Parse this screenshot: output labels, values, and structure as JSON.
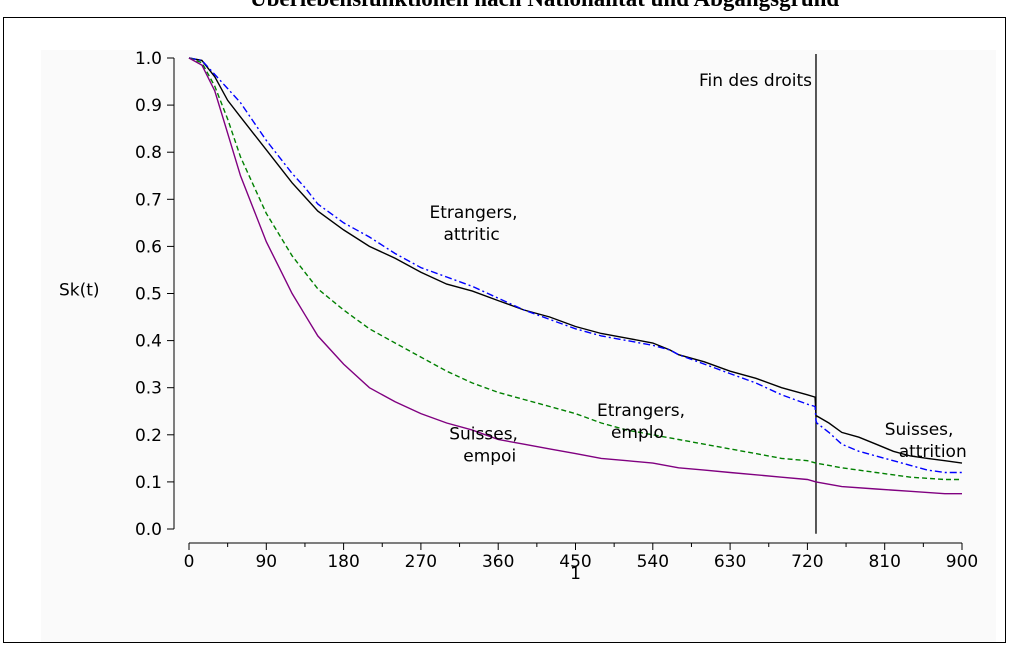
{
  "page": {
    "title": "Überlebensfunktionen nach Nationalität und Abgangsgrund"
  },
  "chart_data": {
    "type": "line",
    "title": "",
    "xlabel": "1",
    "ylabel": "Sk(t)",
    "xlim": [
      0,
      900
    ],
    "ylim": [
      0.0,
      1.0
    ],
    "x_ticks": [
      "0",
      "90",
      "180",
      "270",
      "360",
      "450",
      "540",
      "630",
      "720",
      "810",
      "900"
    ],
    "y_ticks": [
      "0.0",
      "0.1",
      "0.2",
      "0.3",
      "0.4",
      "0.5",
      "0.6",
      "0.7",
      "0.8",
      "0.9",
      "1.0"
    ],
    "vline": {
      "x": 730,
      "label": "Fin des droits"
    },
    "series": [
      {
        "name": "Etrangers, attrition",
        "color": "#000000",
        "dash": "solid",
        "x": [
          0,
          15,
          30,
          45,
          60,
          75,
          90,
          105,
          120,
          135,
          150,
          180,
          210,
          240,
          270,
          300,
          330,
          360,
          390,
          420,
          450,
          480,
          510,
          540,
          560,
          570,
          600,
          630,
          660,
          690,
          720,
          729,
          730,
          731,
          745,
          760,
          780,
          800,
          820,
          840,
          860,
          880,
          900
        ],
        "y": [
          1.0,
          0.995,
          0.96,
          0.91,
          0.875,
          0.84,
          0.805,
          0.77,
          0.735,
          0.705,
          0.675,
          0.635,
          0.6,
          0.575,
          0.545,
          0.52,
          0.505,
          0.485,
          0.465,
          0.45,
          0.43,
          0.415,
          0.405,
          0.395,
          0.38,
          0.37,
          0.355,
          0.335,
          0.32,
          0.3,
          0.285,
          0.28,
          0.24,
          0.24,
          0.225,
          0.205,
          0.195,
          0.18,
          0.165,
          0.155,
          0.15,
          0.145,
          0.14
        ]
      },
      {
        "name": "Etrangers, emploi",
        "color": "#0000ff",
        "dash": "dashdot",
        "x": [
          0,
          15,
          30,
          45,
          60,
          75,
          90,
          105,
          120,
          135,
          150,
          180,
          210,
          240,
          270,
          300,
          330,
          360,
          390,
          420,
          450,
          480,
          510,
          540,
          560,
          570,
          600,
          630,
          660,
          690,
          720,
          729,
          730,
          731,
          745,
          760,
          780,
          800,
          820,
          840,
          860,
          880,
          900
        ],
        "y": [
          1.0,
          0.995,
          0.965,
          0.935,
          0.905,
          0.865,
          0.825,
          0.79,
          0.755,
          0.725,
          0.69,
          0.65,
          0.62,
          0.585,
          0.555,
          0.535,
          0.515,
          0.49,
          0.465,
          0.445,
          0.425,
          0.41,
          0.4,
          0.39,
          0.38,
          0.37,
          0.35,
          0.33,
          0.31,
          0.285,
          0.265,
          0.26,
          0.23,
          0.225,
          0.205,
          0.18,
          0.165,
          0.155,
          0.145,
          0.135,
          0.125,
          0.12,
          0.12
        ]
      },
      {
        "name": "Etrangers, emplo",
        "color": "#008000",
        "dash": "dashed",
        "x": [
          0,
          15,
          30,
          45,
          60,
          75,
          90,
          105,
          120,
          135,
          150,
          180,
          210,
          240,
          270,
          300,
          330,
          360,
          390,
          420,
          450,
          480,
          510,
          540,
          570,
          600,
          630,
          660,
          690,
          720,
          730,
          760,
          800,
          840,
          880,
          900
        ],
        "y": [
          1.0,
          0.99,
          0.94,
          0.87,
          0.79,
          0.73,
          0.67,
          0.625,
          0.58,
          0.545,
          0.51,
          0.465,
          0.425,
          0.395,
          0.365,
          0.335,
          0.31,
          0.29,
          0.275,
          0.26,
          0.245,
          0.225,
          0.21,
          0.2,
          0.19,
          0.18,
          0.17,
          0.16,
          0.15,
          0.145,
          0.14,
          0.13,
          0.12,
          0.11,
          0.105,
          0.105
        ]
      },
      {
        "name": "Suisses, emploi",
        "color": "#800080",
        "dash": "solid",
        "x": [
          0,
          15,
          30,
          45,
          60,
          75,
          90,
          105,
          120,
          135,
          150,
          180,
          210,
          240,
          270,
          300,
          330,
          360,
          390,
          420,
          450,
          480,
          510,
          540,
          570,
          600,
          630,
          660,
          690,
          720,
          730,
          760,
          800,
          840,
          880,
          900
        ],
        "y": [
          1.0,
          0.985,
          0.93,
          0.84,
          0.75,
          0.68,
          0.61,
          0.555,
          0.5,
          0.455,
          0.41,
          0.35,
          0.3,
          0.27,
          0.245,
          0.225,
          0.21,
          0.19,
          0.18,
          0.17,
          0.16,
          0.15,
          0.145,
          0.14,
          0.13,
          0.125,
          0.12,
          0.115,
          0.11,
          0.105,
          0.1,
          0.09,
          0.085,
          0.08,
          0.075,
          0.075
        ]
      }
    ],
    "annotations": [
      {
        "lines": [
          "Etrangers,",
          "attritic"
        ],
        "x": 280,
        "y": 0.66
      },
      {
        "lines": [
          "Etrangers,",
          "emplo"
        ],
        "x": 475,
        "y": 0.24
      },
      {
        "lines": [
          "Suisses,",
          "empoi"
        ],
        "x": 303,
        "y": 0.19
      },
      {
        "lines": [
          "Suisses,",
          "attrition"
        ],
        "x": 810,
        "y": 0.2
      }
    ],
    "annotation_texts": {
      "a1": "Etrangers,",
      "a2": "attritic",
      "b1": "Etrangers,",
      "b2": "emplo",
      "c1": "Suisses,",
      "c2": "empoi",
      "d1": "Suisses,",
      "d2": "attrition"
    },
    "grid": false,
    "legend": "none"
  }
}
